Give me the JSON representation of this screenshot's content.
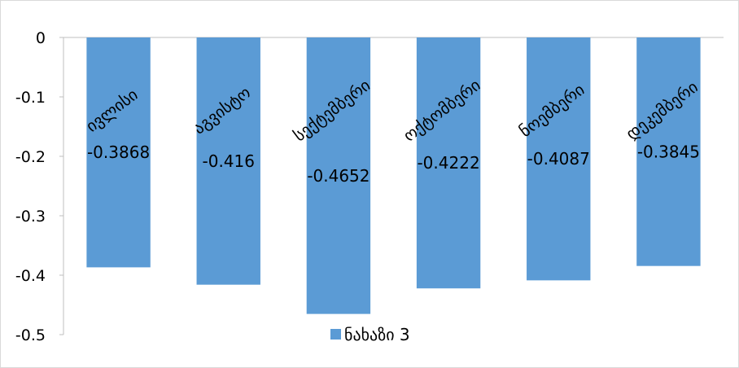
{
  "chart_data": {
    "type": "bar",
    "categories": [
      "ივლისი",
      "აგვისტო",
      "სექტემბერი",
      "ოქტომბერი",
      "ნოემბერი",
      "დეკემბერი"
    ],
    "series": [
      {
        "name": "ნახაზი 3",
        "values": [
          -0.3868,
          -0.416,
          -0.4652,
          -0.4222,
          -0.4087,
          -0.3845
        ],
        "color": "#5b9bd5"
      }
    ],
    "data_labels": [
      "-0.3868",
      "-0.416",
      "-0.4652",
      "-0.4222",
      "-0.4087",
      "-0.3845"
    ],
    "y_ticks": [
      "0",
      "-0.1",
      "-0.2",
      "-0.3",
      "-0.4",
      "-0.5"
    ],
    "ylim": [
      -0.5,
      0
    ],
    "title": "",
    "xlabel": "",
    "ylabel": "",
    "grid": false,
    "legend_position": "bottom"
  }
}
